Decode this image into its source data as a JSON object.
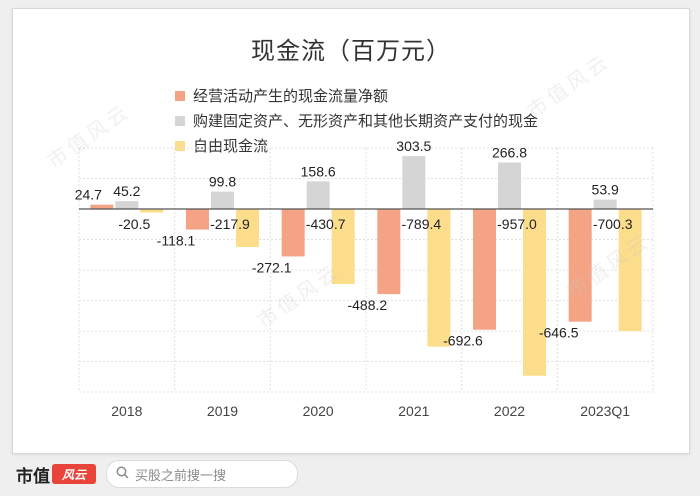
{
  "chart_data": {
    "type": "bar",
    "title": "现金流（百万元）",
    "categories": [
      "2018",
      "2019",
      "2020",
      "2021",
      "2022",
      "2023Q1"
    ],
    "series": [
      {
        "name": "经营活动产生的现金流量净额",
        "color": "#f4a484",
        "values": [
          24.7,
          -118.1,
          -272.1,
          -488.2,
          -692.6,
          -646.5
        ]
      },
      {
        "name": "购建固定资产、无形资产和其他长期资产支付的现金",
        "color": "#d5d5d5",
        "values": [
          45.2,
          99.8,
          158.6,
          303.5,
          266.8,
          53.9
        ]
      },
      {
        "name": "自由现金流",
        "color": "#fbdd8c",
        "values": [
          -20.5,
          -217.9,
          -430.7,
          -789.4,
          -957.0,
          -700.3
        ]
      }
    ],
    "ylim": [
      -1200,
      350
    ],
    "grid": true,
    "legend_position": "top-left"
  },
  "footer": {
    "brand": "市值",
    "brand_mark": "风云",
    "search_placeholder": "买股之前搜一搜"
  },
  "watermark": "市值风云"
}
